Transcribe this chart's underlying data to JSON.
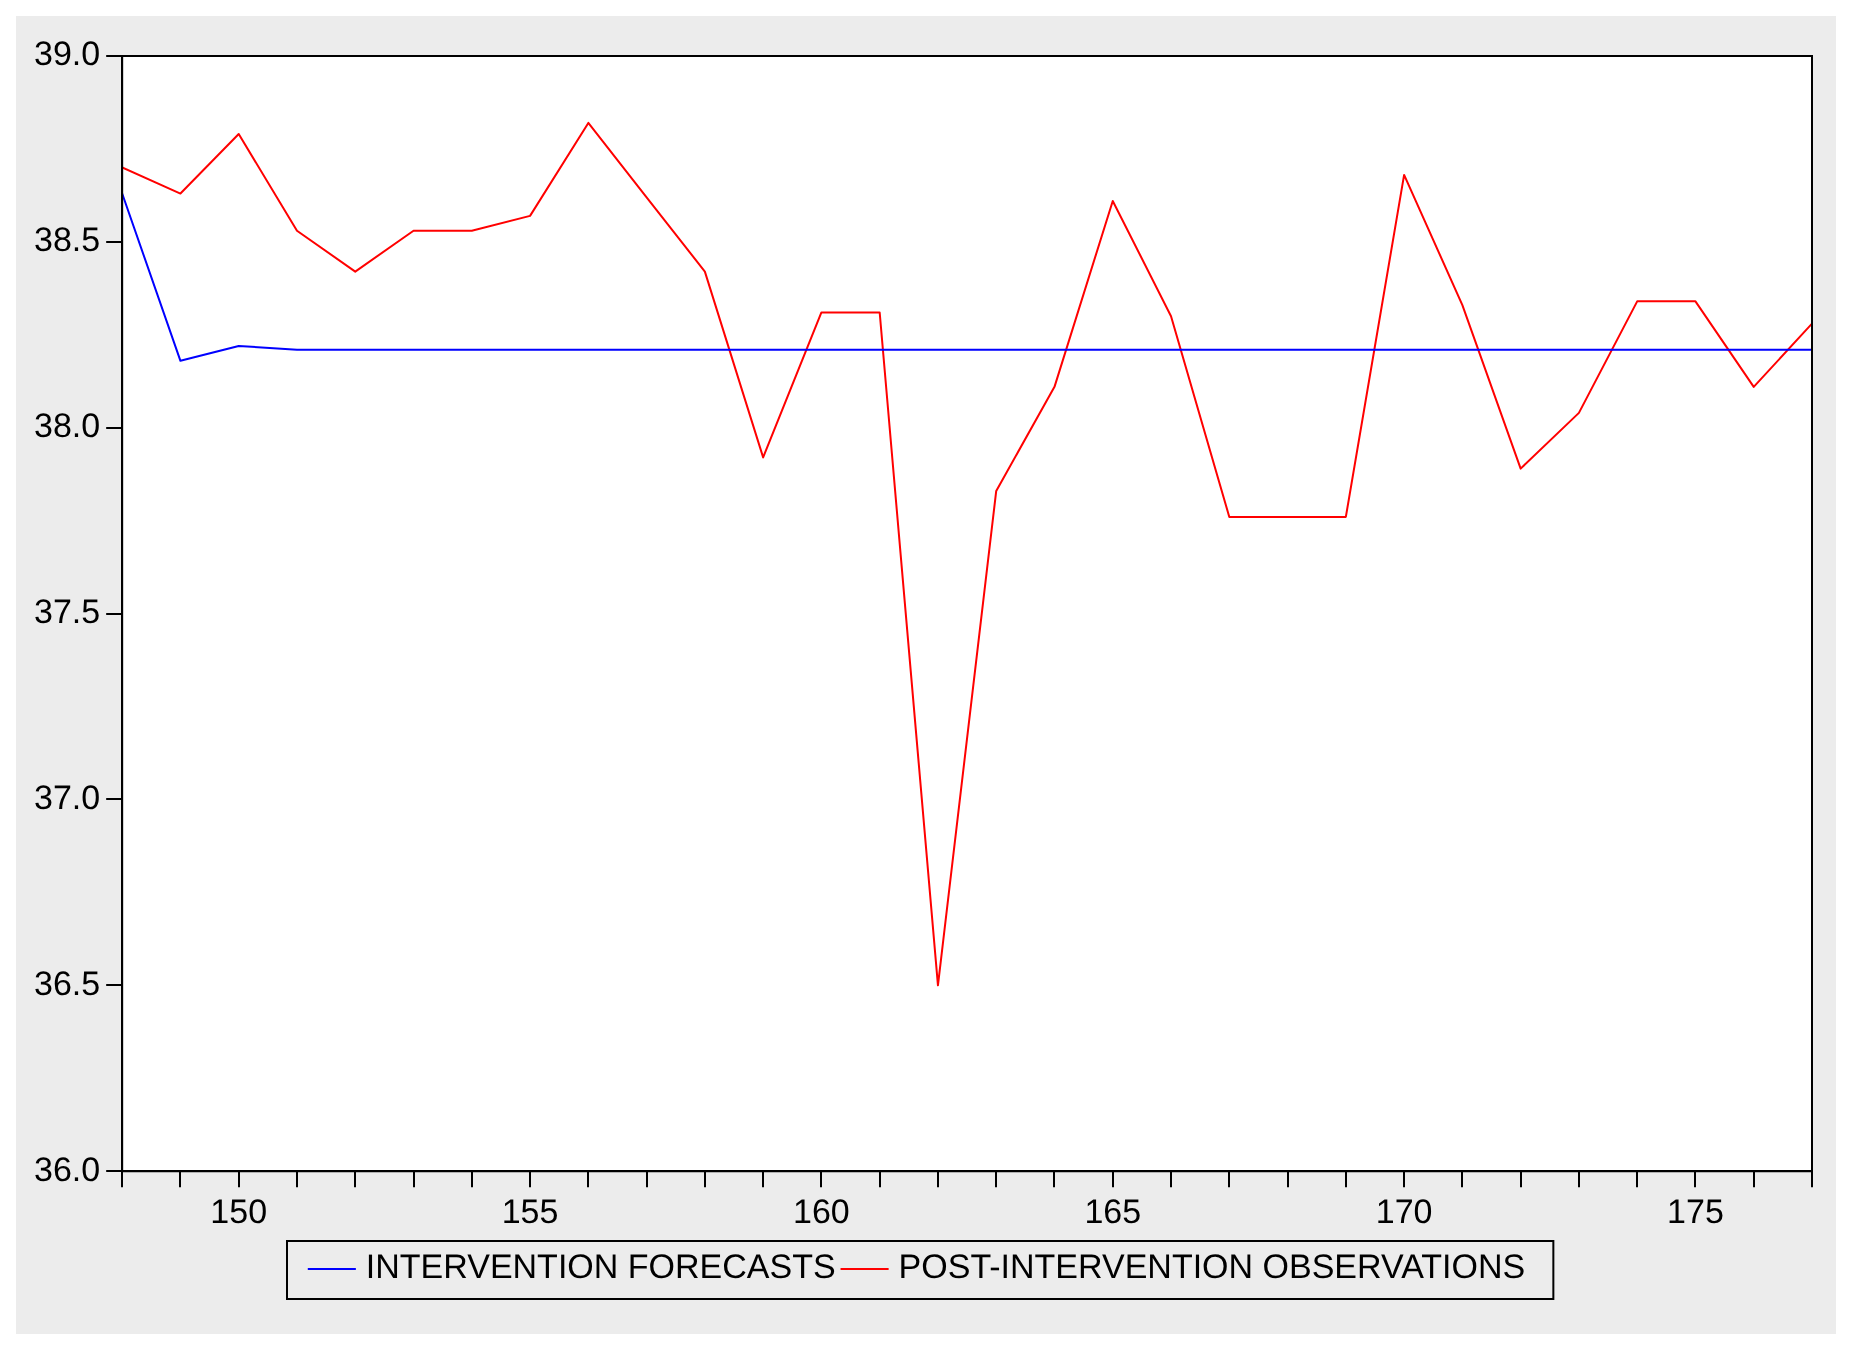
{
  "chart_data": {
    "type": "line",
    "x": [
      148,
      149,
      150,
      151,
      152,
      153,
      154,
      155,
      156,
      157,
      158,
      159,
      160,
      161,
      162,
      163,
      164,
      165,
      166,
      167,
      168,
      169,
      170,
      171,
      172,
      173,
      174,
      175,
      176,
      177
    ],
    "series": [
      {
        "name": "INTERVENTION FORECASTS",
        "color": "#0000ff",
        "values": [
          38.63,
          38.18,
          38.22,
          38.21,
          38.21,
          38.21,
          38.21,
          38.21,
          38.21,
          38.21,
          38.21,
          38.21,
          38.21,
          38.21,
          38.21,
          38.21,
          38.21,
          38.21,
          38.21,
          38.21,
          38.21,
          38.21,
          38.21,
          38.21,
          38.21,
          38.21,
          38.21,
          38.21,
          38.21,
          38.21
        ]
      },
      {
        "name": "POST-INTERVENTION OBSERVATIONS",
        "color": "#ff0000",
        "values": [
          38.7,
          38.63,
          38.79,
          38.53,
          38.42,
          38.53,
          38.53,
          38.57,
          38.82,
          38.62,
          38.42,
          37.92,
          38.31,
          38.31,
          36.5,
          37.83,
          38.11,
          38.61,
          38.3,
          37.76,
          37.76,
          37.76,
          38.68,
          38.33,
          37.89,
          38.04,
          38.34,
          38.34,
          38.11,
          38.28
        ]
      }
    ],
    "xlim": [
      148,
      177
    ],
    "xticks": [
      {
        "value": 148,
        "label": null
      },
      {
        "value": 149,
        "label": null
      },
      150,
      {
        "value": 151,
        "label": null
      },
      {
        "value": 152,
        "label": null
      },
      {
        "value": 153,
        "label": null
      },
      {
        "value": 154,
        "label": null
      },
      155,
      {
        "value": 156,
        "label": null
      },
      {
        "value": 157,
        "label": null
      },
      {
        "value": 158,
        "label": null
      },
      {
        "value": 159,
        "label": null
      },
      160,
      {
        "value": 161,
        "label": null
      },
      {
        "value": 162,
        "label": null
      },
      {
        "value": 163,
        "label": null
      },
      {
        "value": 164,
        "label": null
      },
      165,
      {
        "value": 166,
        "label": null
      },
      {
        "value": 167,
        "label": null
      },
      {
        "value": 168,
        "label": null
      },
      {
        "value": 169,
        "label": null
      },
      170,
      {
        "value": 171,
        "label": null
      },
      {
        "value": 172,
        "label": null
      },
      {
        "value": 173,
        "label": null
      },
      {
        "value": 174,
        "label": null
      },
      175,
      {
        "value": 176,
        "label": null
      },
      {
        "value": 177,
        "label": null
      }
    ],
    "ylim": [
      36,
      39
    ],
    "yticks": [
      {
        "value": 36,
        "label": "36.0"
      },
      36.5,
      {
        "value": 37,
        "label": "37.0"
      },
      37.5,
      {
        "value": 38,
        "label": "38.0"
      },
      38.5,
      {
        "value": 39,
        "label": "39.0"
      }
    ],
    "grid": false,
    "legend": "bottom",
    "marker": "none",
    "line_style": "solid"
  }
}
